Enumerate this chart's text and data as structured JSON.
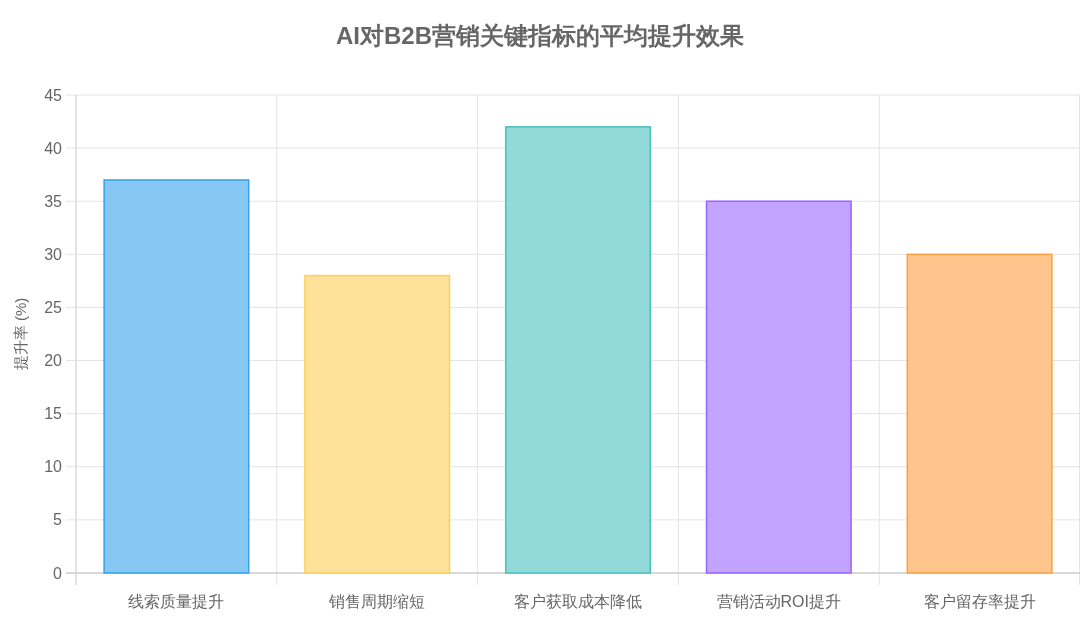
{
  "chart_data": {
    "type": "bar",
    "title": "AI对B2B营销关键指标的平均提升效果",
    "ylabel": "提升率 (%)",
    "categories": [
      "线索质量提升",
      "销售周期缩短",
      "客户获取成本降低",
      "营销活动ROI提升",
      "客户留存率提升"
    ],
    "values": [
      37,
      28,
      42,
      35,
      30
    ],
    "colors": [
      "#86c7f3",
      "#ffe29a",
      "#93d9d9",
      "#c2a3ff",
      "#ffc58c"
    ],
    "ylim": [
      0,
      45
    ],
    "yticks": [
      0,
      5,
      10,
      15,
      20,
      25,
      30,
      35,
      40,
      45
    ],
    "grid": true
  }
}
